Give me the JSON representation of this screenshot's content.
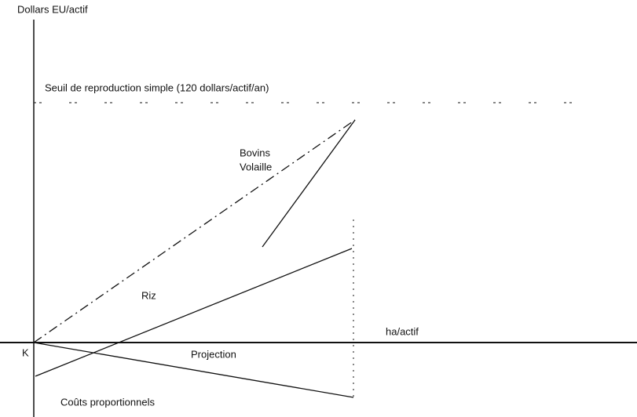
{
  "axes": {
    "y_label": "Dollars EU/actif",
    "x_label": "ha/actif",
    "origin": "K"
  },
  "threshold": {
    "label": "Seuil de reproduction simple (120 dollars/actif/an)"
  },
  "curves": {
    "bovins": "Bovins",
    "volaille": "Volaille",
    "riz": "Riz",
    "projection": "Projection",
    "couts": "Coûts proportionnels"
  }
}
